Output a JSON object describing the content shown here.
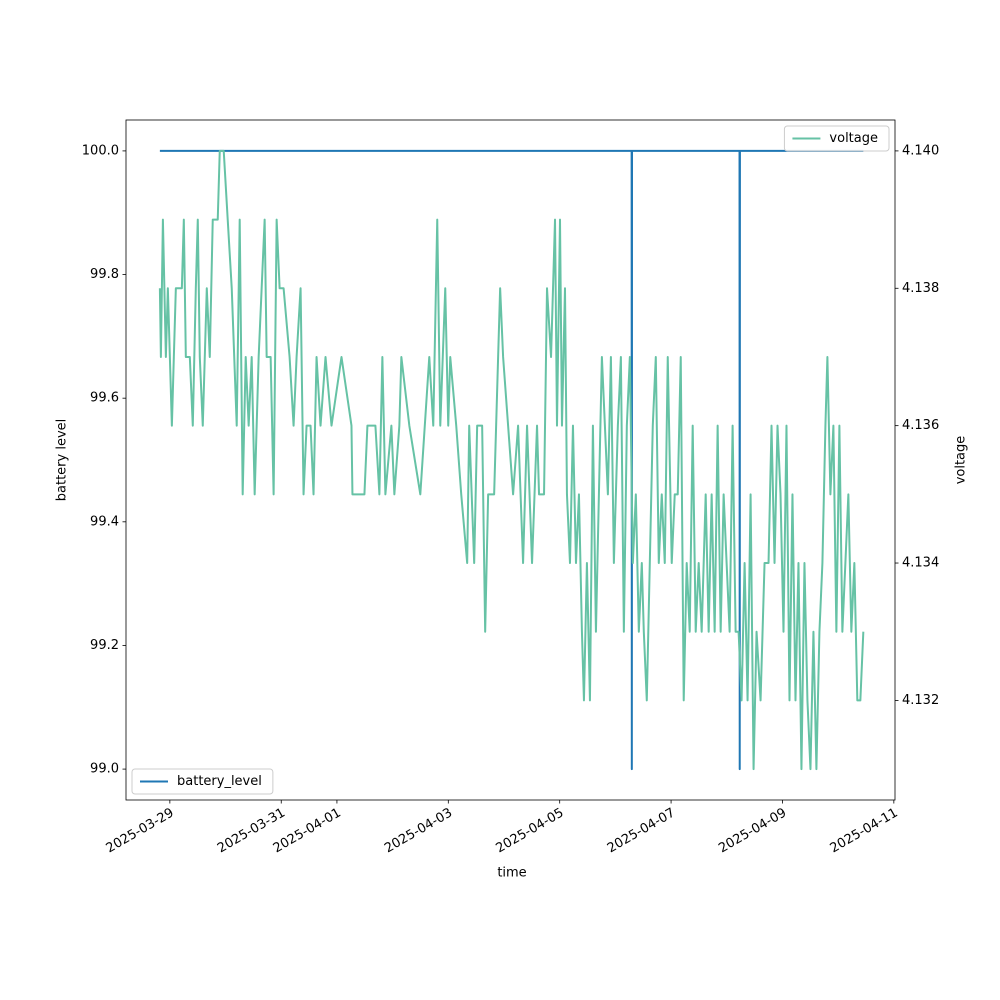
{
  "chart_data": {
    "type": "line",
    "xlabel": "time",
    "ylabel": "battery level",
    "y2label": "voltage",
    "xlim": [
      "2025-03-28T05:06",
      "2025-04-11T00:30"
    ],
    "xticks": [
      "2025-03-29",
      "2025-03-31",
      "2025-04-01",
      "2025-04-03",
      "2025-04-05",
      "2025-04-07",
      "2025-04-09",
      "2025-04-11"
    ],
    "ylim": [
      98.95,
      100.05
    ],
    "yticks": [
      {
        "value": 99,
        "label": "99.0"
      },
      99.2,
      99.4,
      99.6,
      99.8,
      {
        "value": 100,
        "label": "100.0"
      }
    ],
    "y2lim": [
      4.13055,
      4.14045
    ],
    "y2ticks": [
      4.132,
      4.134,
      4.136,
      4.138,
      {
        "value": 4.14,
        "label": "4.140"
      }
    ],
    "series": [
      {
        "name": "battery_level",
        "color": "#1f77b4",
        "axis": "y",
        "legend": "lower left",
        "x": [
          "2025-03-28T19:42",
          "2025-04-06T07:00",
          "2025-04-06T07:05",
          "2025-04-06T07:10",
          "2025-04-08T05:30",
          "2025-04-08T05:35",
          "2025-04-08T05:40",
          "2025-04-10T10:51"
        ],
        "values": [
          100,
          100,
          99,
          100,
          100,
          99,
          100,
          100
        ]
      },
      {
        "name": "voltage",
        "color": "#66c2a5",
        "axis": "y2",
        "legend": "upper right",
        "x": [
          "2025-03-28T19:42",
          "2025-03-28T20:08",
          "2025-03-28T21:00",
          "2025-03-28T22:17",
          "2025-03-28T23:08",
          "2025-03-29T00:52",
          "2025-03-29T01:43",
          "2025-03-29T02:35",
          "2025-03-29T05:10",
          "2025-03-29T06:01",
          "2025-03-29T06:53",
          "2025-03-29T08:36",
          "2025-03-29T09:53",
          "2025-03-29T11:11",
          "2025-03-29T12:02",
          "2025-03-29T12:54",
          "2025-03-29T14:11",
          "2025-03-29T15:55",
          "2025-03-29T17:12",
          "2025-03-29T18:29",
          "2025-03-29T20:38",
          "2025-03-29T21:30",
          "2025-03-29T23:13",
          "2025-03-30T00:56",
          "2025-03-30T02:40",
          "2025-03-30T04:49",
          "2025-03-30T06:06",
          "2025-03-30T07:23",
          "2025-03-30T08:41",
          "2025-03-30T09:58",
          "2025-03-30T11:16",
          "2025-03-30T12:33",
          "2025-03-30T14:16",
          "2025-03-30T16:51",
          "2025-03-30T17:43",
          "2025-03-30T19:26",
          "2025-03-30T20:43",
          "2025-03-30T22:01",
          "2025-03-30T23:18",
          "2025-03-31T01:01",
          "2025-03-31T03:36",
          "2025-03-31T05:19",
          "2025-03-31T06:37",
          "2025-03-31T08:20",
          "2025-03-31T09:37",
          "2025-03-31T10:55",
          "2025-03-31T12:38",
          "2025-03-31T13:55",
          "2025-03-31T15:13",
          "2025-03-31T16:56",
          "2025-03-31T19:05",
          "2025-03-31T21:40",
          "2025-04-01T01:58",
          "2025-04-01T06:16",
          "2025-04-01T06:41",
          "2025-04-01T11:51",
          "2025-04-01T13:08",
          "2025-04-01T16:35",
          "2025-04-01T18:18",
          "2025-04-01T19:35",
          "2025-04-01T20:53",
          "2025-04-01T23:28",
          "2025-04-02T00:45",
          "2025-04-02T02:54",
          "2025-04-02T03:46",
          "2025-04-02T07:12",
          "2025-04-02T11:56",
          "2025-04-02T15:48",
          "2025-04-02T17:31",
          "2025-04-02T19:14",
          "2025-04-02T20:32",
          "2025-04-02T22:41",
          "2025-04-02T23:58",
          "2025-04-03T00:50",
          "2025-04-03T03:25",
          "2025-04-03T05:34",
          "2025-04-03T08:08",
          "2025-04-03T09:00",
          "2025-04-03T11:09",
          "2025-04-03T12:26",
          "2025-04-03T14:35",
          "2025-04-03T15:53",
          "2025-04-03T17:10",
          "2025-04-03T19:45",
          "2025-04-03T21:28",
          "2025-04-03T22:20",
          "2025-04-03T23:37",
          "2025-04-04T03:55",
          "2025-04-04T06:04",
          "2025-04-04T08:13",
          "2025-04-04T09:56",
          "2025-04-04T12:05",
          "2025-04-04T14:14",
          "2025-04-04T15:06",
          "2025-04-04T17:15",
          "2025-04-04T18:32",
          "2025-04-04T20:16",
          "2025-04-04T21:59",
          "2025-04-04T22:50",
          "2025-04-05T00:08",
          "2025-04-05T00:59",
          "2025-04-05T02:17",
          "2025-04-05T03:08",
          "2025-04-05T04:26",
          "2025-04-05T05:43",
          "2025-04-05T07:01",
          "2025-04-05T08:18",
          "2025-04-05T09:35",
          "2025-04-05T10:27",
          "2025-04-05T11:44",
          "2025-04-05T13:02",
          "2025-04-05T14:19",
          "2025-04-05T15:37",
          "2025-04-05T16:54",
          "2025-04-05T18:11",
          "2025-04-05T19:29",
          "2025-04-05T20:46",
          "2025-04-05T22:04",
          "2025-04-05T23:21",
          "2025-04-06T01:04",
          "2025-04-06T02:22",
          "2025-04-06T03:39",
          "2025-04-06T04:56",
          "2025-04-06T06:14",
          "2025-04-06T07:31",
          "2025-04-06T08:49",
          "2025-04-06T10:06",
          "2025-04-06T11:23",
          "2025-04-06T12:15",
          "2025-04-06T13:32",
          "2025-04-06T14:50",
          "2025-04-06T16:07",
          "2025-04-06T17:25",
          "2025-04-06T18:42",
          "2025-04-06T19:59",
          "2025-04-06T21:17",
          "2025-04-06T22:34",
          "2025-04-07T00:17",
          "2025-04-07T01:35",
          "2025-04-07T02:52",
          "2025-04-07T04:10",
          "2025-04-07T05:27",
          "2025-04-07T06:44",
          "2025-04-07T08:02",
          "2025-04-07T09:19",
          "2025-04-07T10:37",
          "2025-04-07T11:54",
          "2025-04-07T13:11",
          "2025-04-07T14:55",
          "2025-04-07T16:12",
          "2025-04-07T17:29",
          "2025-04-07T18:47",
          "2025-04-07T20:04",
          "2025-04-07T21:22",
          "2025-04-07T22:39",
          "2025-04-07T23:56",
          "2025-04-08T01:14",
          "2025-04-08T02:31",
          "2025-04-08T03:49",
          "2025-04-08T05:06",
          "2025-04-08T06:23",
          "2025-04-08T07:41",
          "2025-04-08T08:58",
          "2025-04-08T10:16",
          "2025-04-08T11:33",
          "2025-04-08T12:50",
          "2025-04-08T14:34",
          "2025-04-08T16:17",
          "2025-04-08T18:00",
          "2025-04-08T19:17",
          "2025-04-08T20:35",
          "2025-04-08T21:52",
          "2025-04-08T23:10",
          "2025-04-09T00:27",
          "2025-04-09T01:44",
          "2025-04-09T03:02",
          "2025-04-09T04:19",
          "2025-04-09T05:37",
          "2025-04-09T06:54",
          "2025-04-09T08:11",
          "2025-04-09T09:29",
          "2025-04-09T10:46",
          "2025-04-09T12:04",
          "2025-04-09T13:21",
          "2025-04-09T14:38",
          "2025-04-09T15:56",
          "2025-04-09T17:13",
          "2025-04-09T18:31",
          "2025-04-09T19:22",
          "2025-04-09T20:40",
          "2025-04-09T21:57",
          "2025-04-09T23:14",
          "2025-04-10T00:32",
          "2025-04-10T01:49",
          "2025-04-10T03:07",
          "2025-04-10T04:24",
          "2025-04-10T05:41",
          "2025-04-10T06:59",
          "2025-04-10T08:16",
          "2025-04-10T09:34",
          "2025-04-10T10:51"
        ],
        "values": [
          4.138,
          4.137,
          4.139,
          4.137,
          4.138,
          4.136,
          4.137,
          4.138,
          4.138,
          4.139,
          4.137,
          4.137,
          4.136,
          4.138,
          4.139,
          4.137,
          4.136,
          4.138,
          4.137,
          4.139,
          4.139,
          4.14,
          4.14,
          4.139,
          4.138,
          4.136,
          4.139,
          4.135,
          4.137,
          4.136,
          4.137,
          4.135,
          4.137,
          4.139,
          4.137,
          4.137,
          4.135,
          4.139,
          4.138,
          4.138,
          4.137,
          4.136,
          4.137,
          4.138,
          4.135,
          4.136,
          4.136,
          4.135,
          4.137,
          4.136,
          4.137,
          4.136,
          4.137,
          4.136,
          4.135,
          4.135,
          4.136,
          4.136,
          4.135,
          4.137,
          4.135,
          4.136,
          4.135,
          4.136,
          4.137,
          4.136,
          4.135,
          4.137,
          4.136,
          4.139,
          4.136,
          4.138,
          4.136,
          4.137,
          4.136,
          4.135,
          4.134,
          4.136,
          4.134,
          4.136,
          4.136,
          4.133,
          4.135,
          4.135,
          4.137,
          4.138,
          4.137,
          4.135,
          4.136,
          4.134,
          4.136,
          4.134,
          4.136,
          4.135,
          4.135,
          4.138,
          4.137,
          4.139,
          4.136,
          4.139,
          4.136,
          4.138,
          4.135,
          4.134,
          4.136,
          4.134,
          4.135,
          4.133,
          4.132,
          4.134,
          4.132,
          4.136,
          4.133,
          4.135,
          4.137,
          4.136,
          4.135,
          4.137,
          4.134,
          4.136,
          4.137,
          4.133,
          4.136,
          4.137,
          4.134,
          4.135,
          4.133,
          4.134,
          4.133,
          4.132,
          4.134,
          4.136,
          4.137,
          4.134,
          4.135,
          4.134,
          4.137,
          4.134,
          4.135,
          4.135,
          4.137,
          4.132,
          4.134,
          4.133,
          4.136,
          4.133,
          4.134,
          4.133,
          4.135,
          4.133,
          4.135,
          4.133,
          4.136,
          4.133,
          4.135,
          4.134,
          4.133,
          4.136,
          4.133,
          4.133,
          4.132,
          4.134,
          4.132,
          4.135,
          4.131,
          4.133,
          4.132,
          4.134,
          4.134,
          4.136,
          4.134,
          4.136,
          4.135,
          4.133,
          4.136,
          4.132,
          4.135,
          4.132,
          4.134,
          4.131,
          4.134,
          4.132,
          4.131,
          4.133,
          4.131,
          4.133,
          4.134,
          4.136,
          4.137,
          4.135,
          4.136,
          4.133,
          4.136,
          4.133,
          4.134,
          4.135,
          4.133,
          4.134,
          4.132,
          4.132,
          4.133
        ]
      }
    ]
  }
}
